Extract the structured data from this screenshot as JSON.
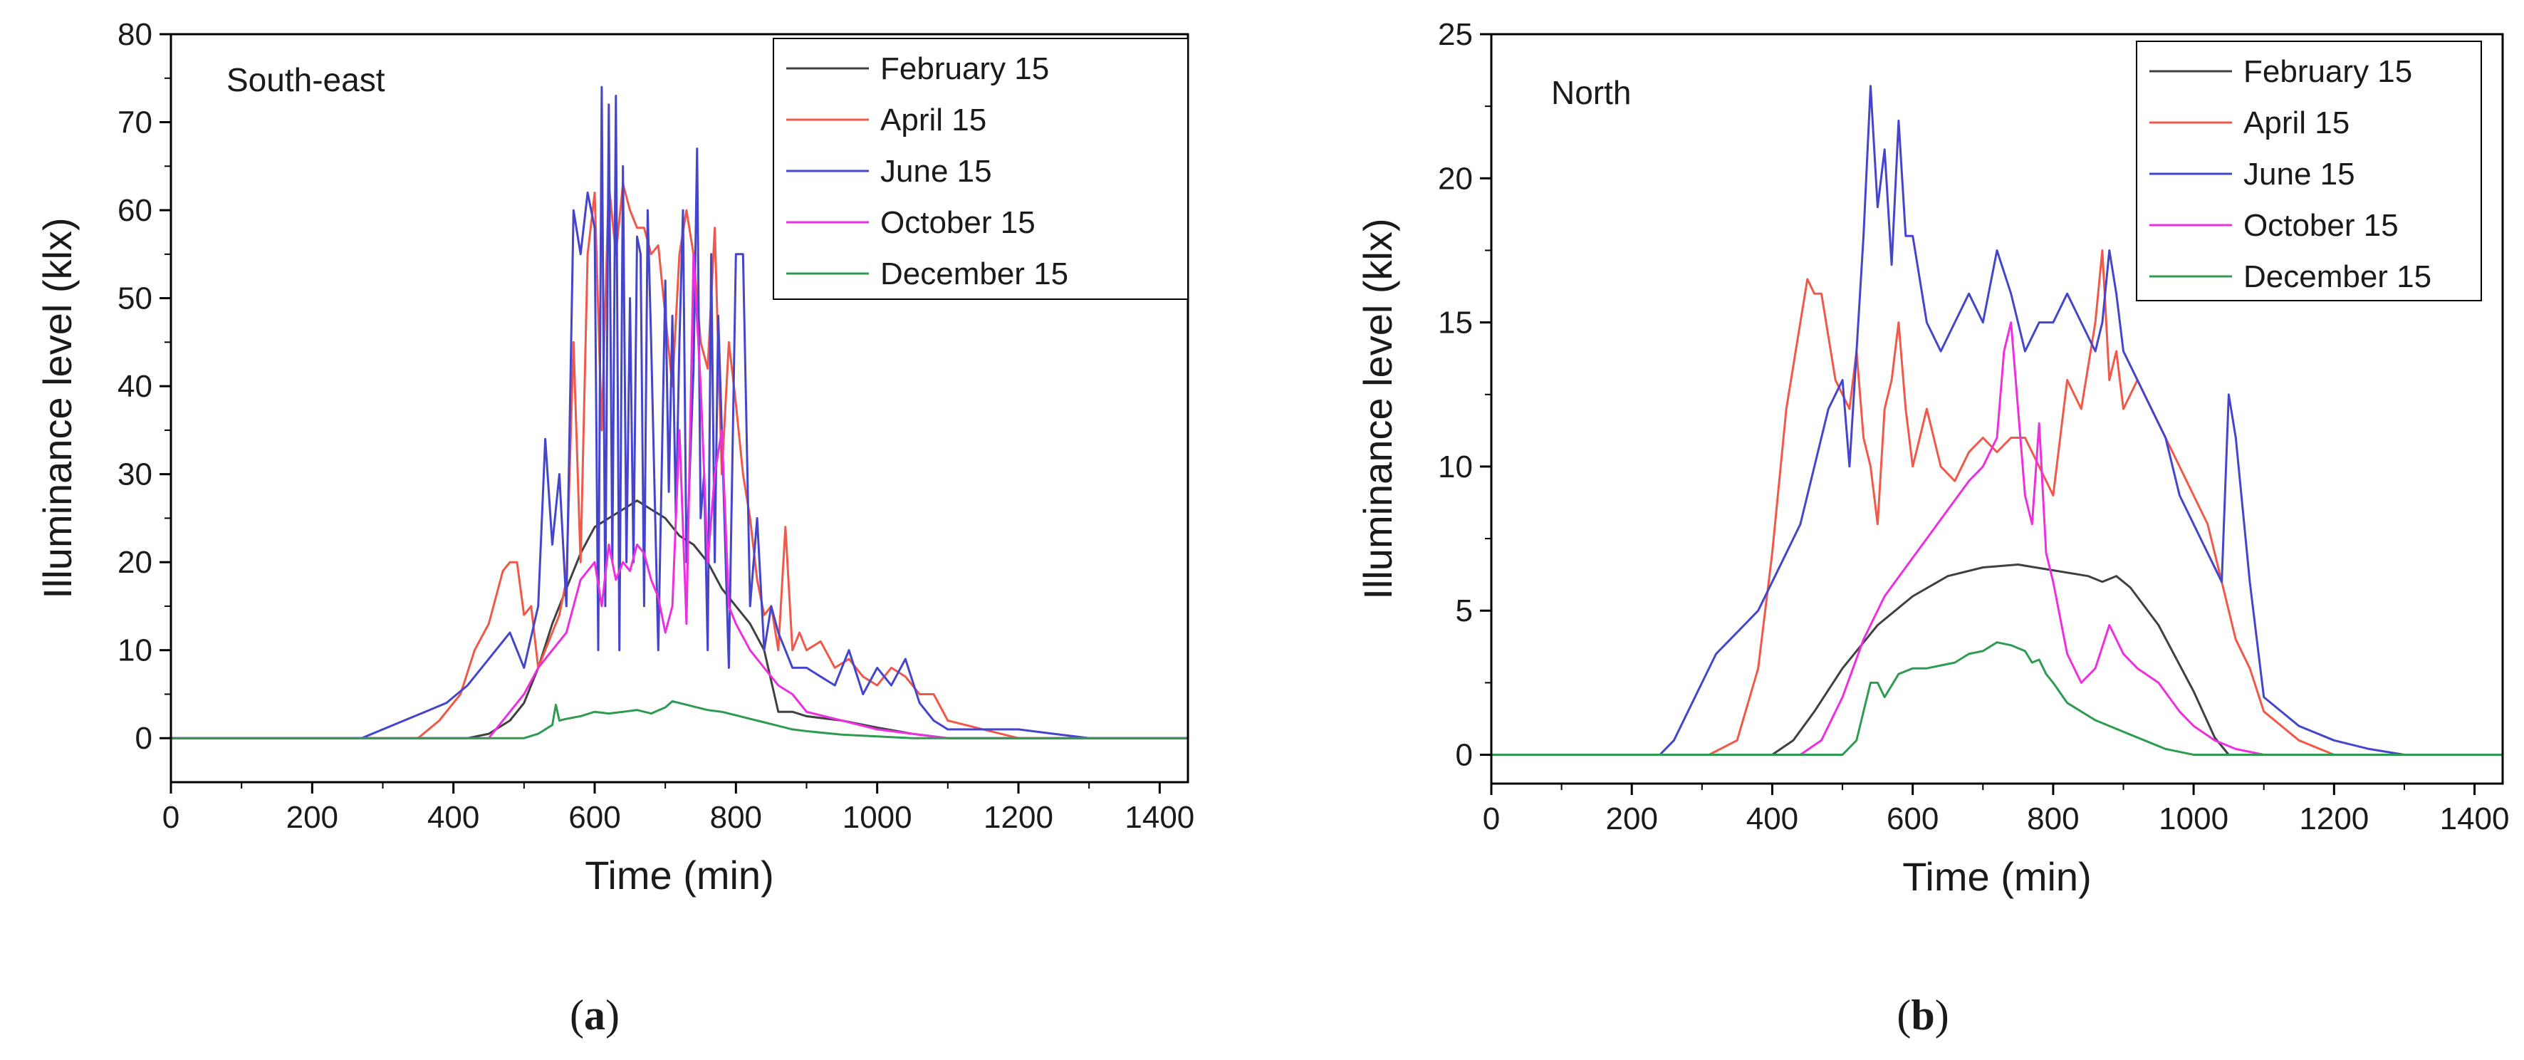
{
  "colors": {
    "February 15": "#404040",
    "April 15": "#f0594a",
    "June 15": "#4444cc",
    "October 15": "#ee2fdf",
    "December 15": "#2e9b50"
  },
  "captions": {
    "a_open": "(",
    "a_letter": "a",
    "a_close": ")",
    "b_open": "(",
    "b_letter": "b",
    "b_close": ")"
  },
  "chart_data": [
    {
      "type": "line",
      "title": "South-east",
      "xlabel": "Time (min)",
      "ylabel": "Illuminance level (klx)",
      "xlim": [
        0,
        1440
      ],
      "ylim": [
        -5,
        80
      ],
      "xticks": [
        0,
        200,
        400,
        600,
        800,
        1000,
        1200,
        1400
      ],
      "yticks": [
        0,
        10,
        20,
        30,
        40,
        50,
        60,
        70,
        80
      ],
      "legend_position": "top-right",
      "series": [
        {
          "name": "February 15",
          "x": [
            0,
            420,
            450,
            480,
            500,
            520,
            540,
            560,
            580,
            600,
            620,
            640,
            660,
            680,
            700,
            720,
            740,
            760,
            780,
            800,
            820,
            840,
            860,
            880,
            900,
            950,
            1000,
            1050,
            1100,
            1440
          ],
          "y": [
            0,
            0,
            0.5,
            2,
            4,
            8,
            13,
            17,
            21,
            24,
            25,
            26,
            27,
            26,
            25,
            23,
            22,
            20,
            17,
            15,
            13,
            10,
            3,
            3,
            2.5,
            2,
            1.2,
            0.5,
            0,
            0
          ]
        },
        {
          "name": "April 15",
          "x": [
            0,
            350,
            380,
            410,
            430,
            450,
            470,
            480,
            490,
            500,
            510,
            520,
            530,
            540,
            550,
            560,
            570,
            580,
            590,
            600,
            610,
            620,
            630,
            640,
            650,
            660,
            670,
            680,
            690,
            700,
            710,
            720,
            730,
            740,
            750,
            760,
            770,
            780,
            790,
            800,
            810,
            820,
            830,
            840,
            850,
            860,
            870,
            880,
            890,
            900,
            920,
            940,
            960,
            980,
            1000,
            1020,
            1040,
            1060,
            1080,
            1100,
            1150,
            1200,
            1440
          ],
          "y": [
            0,
            0,
            2,
            5,
            10,
            13,
            19,
            20,
            20,
            14,
            15,
            8,
            10,
            12,
            14,
            18,
            45,
            20,
            55,
            62,
            35,
            63,
            55,
            63,
            60,
            58,
            58,
            55,
            56,
            48,
            40,
            55,
            60,
            55,
            45,
            42,
            58,
            30,
            45,
            38,
            30,
            25,
            18,
            14,
            15,
            10,
            24,
            10,
            12,
            10,
            11,
            8,
            9,
            7,
            6,
            8,
            7,
            5,
            5,
            2,
            1,
            0,
            0
          ]
        },
        {
          "name": "June 15",
          "x": [
            0,
            270,
            300,
            330,
            360,
            390,
            420,
            440,
            460,
            480,
            500,
            520,
            530,
            540,
            550,
            560,
            570,
            580,
            590,
            600,
            605,
            610,
            615,
            620,
            625,
            630,
            635,
            640,
            645,
            650,
            655,
            660,
            665,
            670,
            675,
            680,
            690,
            700,
            705,
            710,
            715,
            720,
            725,
            730,
            740,
            745,
            750,
            755,
            760,
            765,
            770,
            775,
            780,
            790,
            800,
            810,
            820,
            830,
            840,
            850,
            860,
            870,
            880,
            900,
            920,
            940,
            960,
            980,
            1000,
            1020,
            1040,
            1060,
            1080,
            1100,
            1150,
            1200,
            1250,
            1300,
            1440
          ],
          "y": [
            0,
            0,
            1,
            2,
            3,
            4,
            6,
            8,
            10,
            12,
            8,
            15,
            34,
            22,
            30,
            15,
            60,
            55,
            62,
            58,
            10,
            74,
            15,
            72,
            20,
            73,
            10,
            65,
            20,
            50,
            20,
            57,
            55,
            15,
            60,
            45,
            10,
            52,
            28,
            48,
            25,
            45,
            60,
            20,
            42,
            67,
            25,
            30,
            10,
            55,
            20,
            48,
            35,
            8,
            55,
            55,
            15,
            25,
            10,
            15,
            12,
            10,
            8,
            8,
            7,
            6,
            10,
            5,
            8,
            6,
            9,
            4,
            2,
            1,
            1,
            1,
            0.5,
            0,
            0
          ]
        },
        {
          "name": "October 15",
          "x": [
            0,
            450,
            480,
            500,
            520,
            540,
            560,
            580,
            600,
            610,
            620,
            630,
            640,
            650,
            660,
            670,
            680,
            690,
            700,
            710,
            720,
            730,
            740,
            750,
            760,
            770,
            780,
            790,
            800,
            820,
            840,
            860,
            880,
            900,
            950,
            1000,
            1050,
            1100,
            1440
          ],
          "y": [
            0,
            0,
            3,
            5,
            8,
            10,
            12,
            18,
            20,
            15,
            22,
            18,
            20,
            19,
            22,
            21,
            18,
            16,
            12,
            15,
            35,
            13,
            55,
            40,
            20,
            30,
            35,
            15,
            13,
            10,
            8,
            6,
            5,
            3,
            2,
            1,
            0.5,
            0,
            0
          ]
        },
        {
          "name": "December 15",
          "x": [
            0,
            500,
            520,
            540,
            545,
            550,
            560,
            580,
            600,
            620,
            640,
            660,
            680,
            700,
            710,
            720,
            740,
            760,
            780,
            800,
            820,
            840,
            860,
            880,
            900,
            950,
            1000,
            1050,
            1440
          ],
          "y": [
            0,
            0,
            0.5,
            1.5,
            3.8,
            2,
            2.2,
            2.5,
            3,
            2.8,
            3,
            3.2,
            2.8,
            3.5,
            4.2,
            4,
            3.6,
            3.2,
            3,
            2.6,
            2.2,
            1.8,
            1.4,
            1,
            0.8,
            0.4,
            0.2,
            0,
            0
          ]
        }
      ]
    },
    {
      "type": "line",
      "title": "North",
      "xlabel": "Time (min)",
      "ylabel": "Illuminance level (klx)",
      "xlim": [
        0,
        1440
      ],
      "ylim": [
        -1,
        25
      ],
      "xticks": [
        0,
        200,
        400,
        600,
        800,
        1000,
        1200,
        1400
      ],
      "yticks": [
        0,
        5,
        10,
        15,
        20,
        25
      ],
      "legend_position": "top-right",
      "series": [
        {
          "name": "February 15",
          "x": [
            0,
            400,
            430,
            460,
            500,
            550,
            600,
            650,
            700,
            750,
            800,
            850,
            870,
            890,
            910,
            950,
            1000,
            1030,
            1050,
            1440
          ],
          "y": [
            0,
            0,
            0.5,
            1.5,
            3,
            4.5,
            5.5,
            6.2,
            6.5,
            6.6,
            6.4,
            6.2,
            6,
            6.2,
            5.8,
            4.5,
            2.2,
            0.6,
            0,
            0
          ]
        },
        {
          "name": "April 15",
          "x": [
            0,
            310,
            350,
            380,
            400,
            420,
            440,
            450,
            460,
            470,
            490,
            510,
            520,
            530,
            540,
            550,
            560,
            570,
            580,
            590,
            600,
            620,
            640,
            660,
            680,
            700,
            720,
            740,
            760,
            780,
            800,
            820,
            840,
            860,
            870,
            880,
            890,
            900,
            920,
            940,
            960,
            980,
            1000,
            1020,
            1040,
            1060,
            1080,
            1100,
            1150,
            1200,
            1440
          ],
          "y": [
            0,
            0,
            0.5,
            3,
            7,
            12,
            15,
            16.5,
            16,
            16,
            13,
            12,
            14,
            11,
            10,
            8,
            12,
            13,
            15,
            12,
            10,
            12,
            10,
            9.5,
            10.5,
            11,
            10.5,
            11,
            11,
            10,
            9,
            13,
            12,
            15,
            17.5,
            13,
            14,
            12,
            13,
            12,
            11,
            10,
            9,
            8,
            6,
            4,
            3,
            1.5,
            0.5,
            0,
            0
          ]
        },
        {
          "name": "June 15",
          "x": [
            0,
            240,
            260,
            280,
            300,
            320,
            340,
            360,
            380,
            400,
            420,
            440,
            460,
            480,
            500,
            510,
            520,
            530,
            540,
            550,
            560,
            570,
            580,
            590,
            600,
            620,
            640,
            660,
            680,
            700,
            720,
            740,
            760,
            780,
            800,
            820,
            840,
            860,
            870,
            880,
            890,
            900,
            920,
            940,
            960,
            980,
            1000,
            1020,
            1040,
            1050,
            1060,
            1080,
            1100,
            1150,
            1200,
            1250,
            1300,
            1440
          ],
          "y": [
            0,
            0,
            0.5,
            1.5,
            2.5,
            3.5,
            4,
            4.5,
            5,
            6,
            7,
            8,
            10,
            12,
            13,
            10,
            14,
            18,
            23.2,
            19,
            21,
            17,
            22,
            18,
            18,
            15,
            14,
            15,
            16,
            15,
            17.5,
            16,
            14,
            15,
            15,
            16,
            15,
            14,
            15,
            17.5,
            16,
            14,
            13,
            12,
            11,
            9,
            8,
            7,
            6,
            12.5,
            11,
            6,
            2,
            1,
            0.5,
            0.2,
            0,
            0
          ]
        },
        {
          "name": "October 15",
          "x": [
            0,
            440,
            470,
            500,
            530,
            560,
            590,
            620,
            650,
            680,
            700,
            720,
            730,
            740,
            750,
            760,
            770,
            780,
            790,
            800,
            820,
            840,
            860,
            880,
            900,
            920,
            950,
            980,
            1000,
            1030,
            1060,
            1100,
            1440
          ],
          "y": [
            0,
            0,
            0.5,
            2,
            4,
            5.5,
            6.5,
            7.5,
            8.5,
            9.5,
            10,
            11,
            14,
            15,
            12,
            9,
            8,
            11.5,
            7,
            6,
            3.5,
            2.5,
            3,
            4.5,
            3.5,
            3,
            2.5,
            1.5,
            1,
            0.5,
            0.2,
            0,
            0
          ]
        },
        {
          "name": "December 15",
          "x": [
            0,
            500,
            520,
            530,
            540,
            550,
            560,
            580,
            600,
            620,
            640,
            660,
            680,
            700,
            720,
            740,
            760,
            770,
            780,
            790,
            800,
            820,
            840,
            860,
            880,
            900,
            930,
            960,
            1000,
            1440
          ],
          "y": [
            0,
            0,
            0.5,
            1.5,
            2.5,
            2.5,
            2,
            2.8,
            3,
            3,
            3.1,
            3.2,
            3.5,
            3.6,
            3.9,
            3.8,
            3.6,
            3.2,
            3.3,
            2.8,
            2.5,
            1.8,
            1.5,
            1.2,
            1,
            0.8,
            0.5,
            0.2,
            0,
            0
          ]
        }
      ]
    }
  ]
}
